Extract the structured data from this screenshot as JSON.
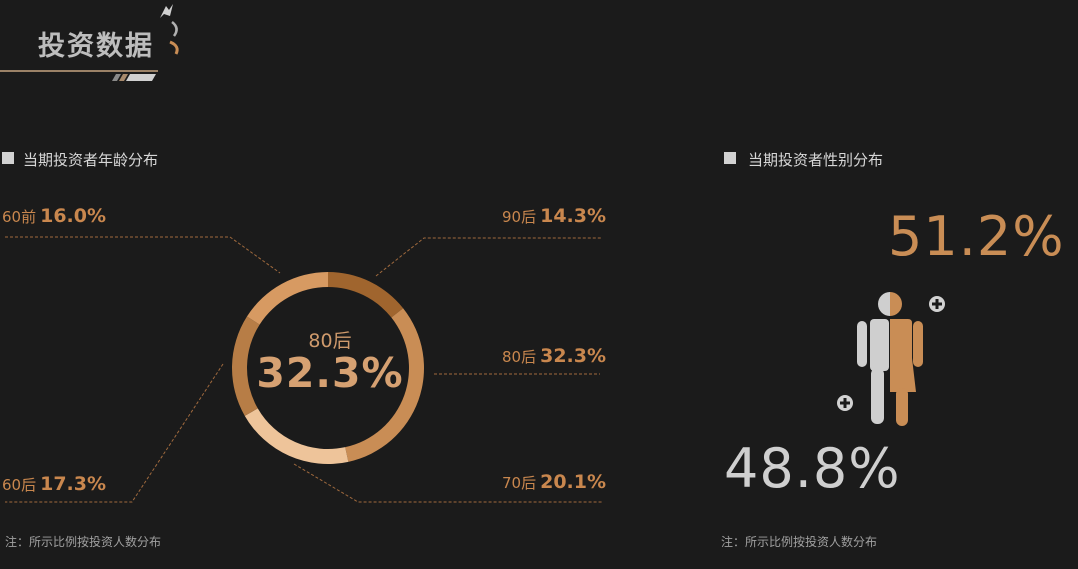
{
  "header": {
    "title": "投资数据"
  },
  "age_section": {
    "title": "当期投资者年龄分布",
    "note": "注：所示比例按投资人数分布"
  },
  "gender_section": {
    "title": "当期投资者性别分布",
    "note": "注：所示比例按投资人数分布"
  },
  "chart_data": [
    {
      "type": "pie",
      "subtype": "donut",
      "categories": [
        "90后",
        "80后",
        "70后",
        "60后",
        "60前"
      ],
      "values": [
        14.3,
        32.3,
        20.1,
        17.3,
        16.0
      ],
      "labels": [
        "14.3%",
        "32.3%",
        "20.1%",
        "17.3%",
        "16.0%"
      ],
      "colors": [
        "#a0652e",
        "#c98d55",
        "#eec49a",
        "#b77d46",
        "#d79a62"
      ],
      "highlight": {
        "category": "80后",
        "value": "32.3%"
      }
    },
    {
      "type": "pie",
      "subtype": "pictogram",
      "categories": [
        "female",
        "male"
      ],
      "values": [
        51.2,
        48.8
      ],
      "labels": [
        "51.2%",
        "48.8%"
      ],
      "colors": [
        "#c98d55",
        "#cfcfcf"
      ]
    }
  ]
}
